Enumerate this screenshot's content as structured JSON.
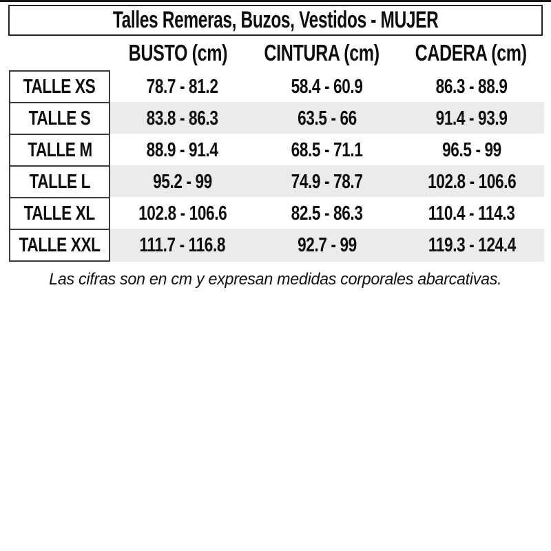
{
  "title": "Talles Remeras, Buzos, Vestidos - MUJER",
  "footnote": "Las cifras son en cm y expresan medidas corporales abarcativas.",
  "colors": {
    "background": "#ffffff",
    "text": "#0e0e0e",
    "title_border": "#242424",
    "label_border": "#3c3c3c",
    "row_stripe": "#ebebeb"
  },
  "chart_data": {
    "type": "table",
    "title": "Talles Remeras, Buzos, Vestidos - MUJER",
    "unit": "cm",
    "columns": [
      "BUSTO (cm)",
      "CINTURA (cm)",
      "CADERA (cm)"
    ],
    "row_labels": [
      "TALLE XS",
      "TALLE S",
      "TALLE M",
      "TALLE L",
      "TALLE XL",
      "TALLE XXL"
    ],
    "rows": [
      {
        "label": "TALLE XS",
        "values": [
          "78.7 - 81.2",
          "58.4 - 60.9",
          "86.3 - 88.9"
        ]
      },
      {
        "label": "TALLE S",
        "values": [
          "83.8 - 86.3",
          "63.5 - 66",
          "91.4 - 93.9"
        ]
      },
      {
        "label": "TALLE M",
        "values": [
          "88.9 - 91.4",
          "68.5 - 71.1",
          "96.5 - 99"
        ]
      },
      {
        "label": "TALLE L",
        "values": [
          "95.2 - 99",
          "74.9 - 78.7",
          "102.8 - 106.6"
        ]
      },
      {
        "label": "TALLE XL",
        "values": [
          "102.8 - 106.6",
          "82.5 - 86.3",
          "110.4 - 114.3"
        ]
      },
      {
        "label": "TALLE XXL",
        "values": [
          "111.7 - 116.8",
          "92.7 - 99",
          "119.3 - 124.4"
        ]
      }
    ],
    "footnote": "Las cifras son en cm y expresan medidas corporales abarcativas.",
    "layout": {
      "legend": "none",
      "grid": "row-striping",
      "striped_rows": [
        "TALLE S",
        "TALLE L",
        "TALLE XXL"
      ]
    }
  }
}
